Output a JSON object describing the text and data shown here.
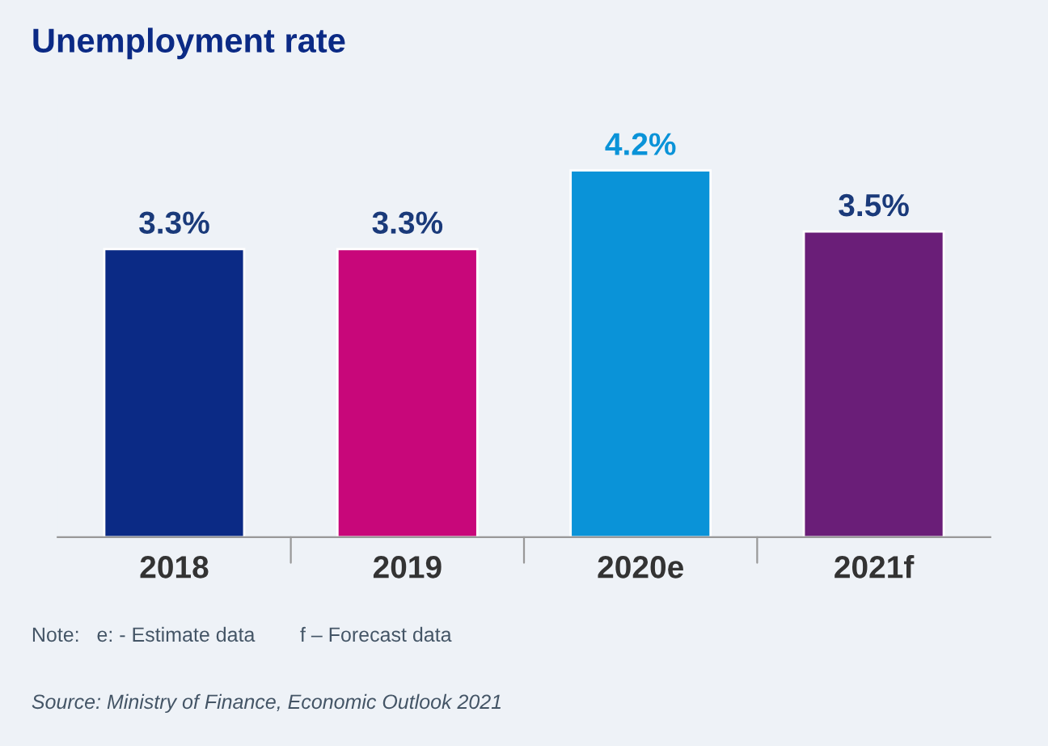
{
  "chart_data": {
    "type": "bar",
    "title": "Unemployment rate",
    "categories": [
      "2018",
      "2019",
      "2020e",
      "2021f"
    ],
    "values": [
      3.3,
      3.3,
      4.2,
      3.5
    ],
    "colors": [
      "#0b2a85",
      "#c8077a",
      "#0a93d8",
      "#6a1e78"
    ],
    "value_labels": [
      "3.3%",
      "3.3%",
      "4.2%",
      "3.5%"
    ],
    "annotations": [
      "Note:   e: - Estimate data        f – Forecast data",
      "Source: Ministry of Finance, Economic Outlook 2021"
    ],
    "grid": false,
    "legend": false
  }
}
